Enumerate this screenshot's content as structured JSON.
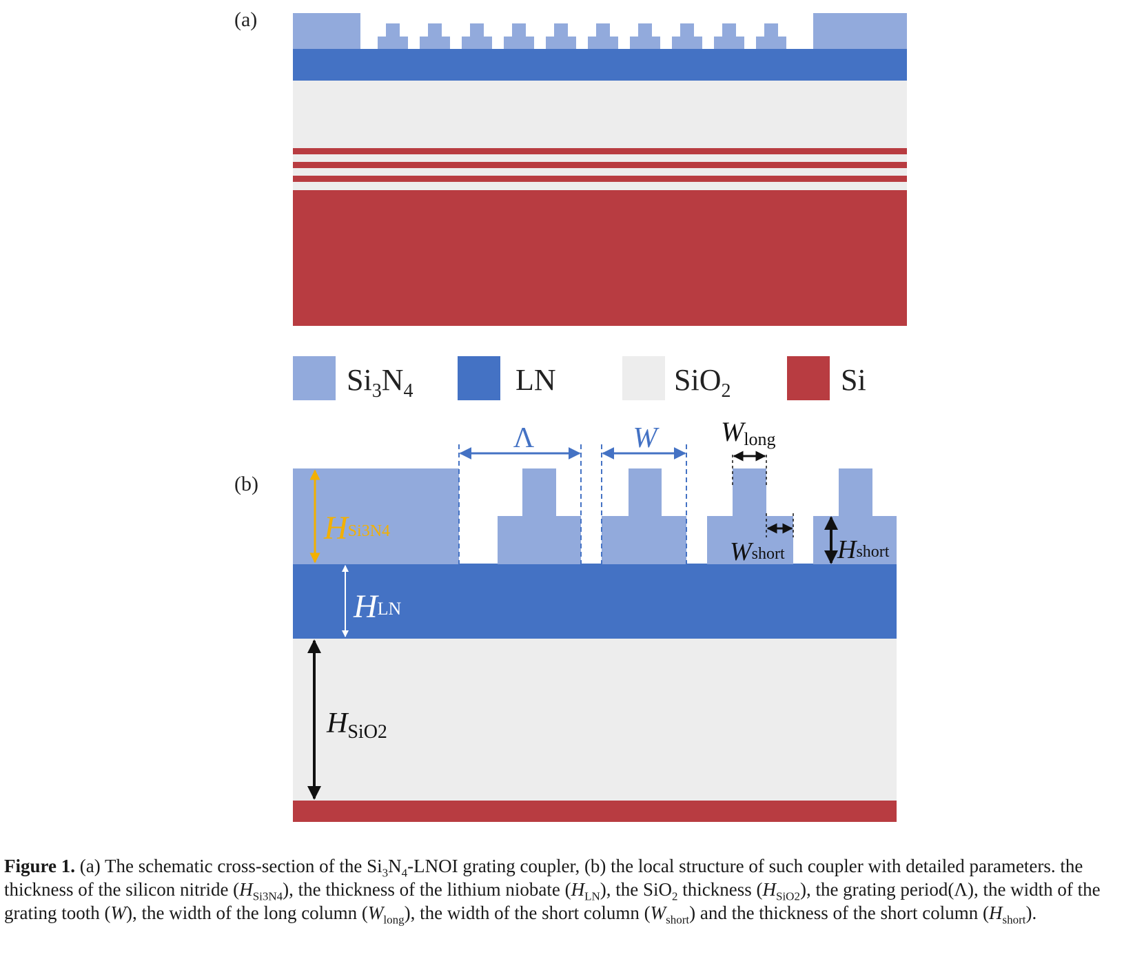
{
  "panel_a": {
    "label": "(a)"
  },
  "panel_b": {
    "label": "(b)"
  },
  "colors": {
    "si3n4": "#92aadc",
    "ln": "#4472c4",
    "sio2": "#ededed",
    "si": "#b83c41",
    "dim_blue": "#4472c4",
    "dim_yellow": "#f3b000",
    "dim_black": "#111111",
    "dim_white": "#ffffff"
  },
  "legend": [
    {
      "key": "si3n4",
      "base": "Si",
      "sub1": "3",
      "mid": "N",
      "sub2": "4"
    },
    {
      "key": "ln",
      "base": "LN"
    },
    {
      "key": "sio2",
      "base": "SiO",
      "sub1": "2"
    },
    {
      "key": "si",
      "base": "Si"
    }
  ],
  "dimensions": {
    "period": {
      "symbol": "Λ"
    },
    "tooth_width": {
      "symbol": "W"
    },
    "w_long": {
      "symbol": "W",
      "sub": "long"
    },
    "w_short": {
      "symbol": "W",
      "sub": "short"
    },
    "h_short": {
      "symbol": "H",
      "sub": "short"
    },
    "h_si3n4": {
      "symbol": "H",
      "sub": "Si3N4"
    },
    "h_ln": {
      "symbol": "H",
      "sub": "LN"
    },
    "h_sio2": {
      "symbol": "H",
      "sub": "SiO2"
    }
  },
  "caption": {
    "label": "Figure 1.",
    "p1": " (a) The schematic cross-section of the Si",
    "s1": "3",
    "p2": "N",
    "s2": "4",
    "p3": "-LNOI grating coupler, (b) the local structure of such coupler with detailed parameters. the thickness of the silicon nitride (",
    "p4": "H",
    "s4": "Si3N4",
    "p5": "), the thickness of the lithium niobate (",
    "p6": "H",
    "s6": "LN",
    "p7": "), the SiO",
    "s7": "2",
    "p8": " thickness (",
    "p9": "H",
    "s9": "SiO2",
    "p10": "), the grating period(Λ), the width of the grating tooth (",
    "p11": "W",
    "p12": "), the width of the long column (",
    "p13": "W",
    "s13": "long",
    "p14": "), the width of the short column (",
    "p15": "W",
    "s15": "short",
    "p16": ") and the thickness of the short column (",
    "p17": "H",
    "s17": "short",
    "p18": ")."
  }
}
